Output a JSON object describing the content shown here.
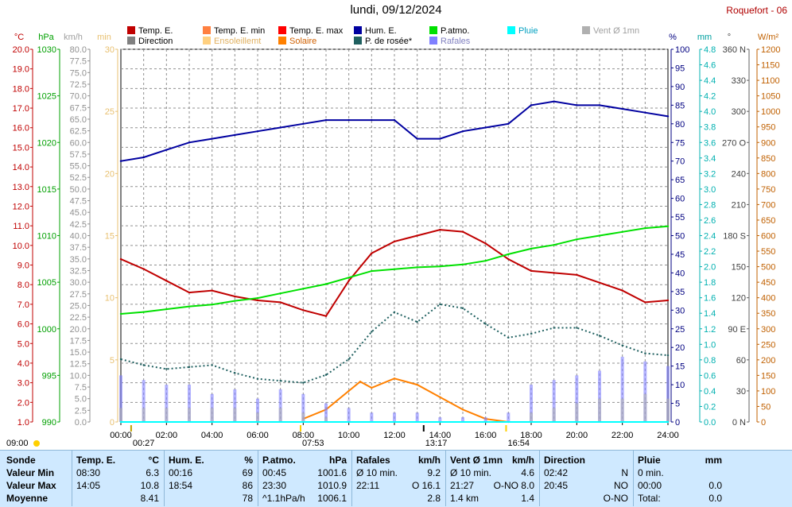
{
  "header": {
    "title": "lundi, 09/12/2024",
    "station": "Roquefort - 06"
  },
  "legend": [
    {
      "label": "Temp. E.",
      "color": "#c00000"
    },
    {
      "label": "Direction",
      "color": "#808080"
    },
    {
      "label": "Temp. E. min",
      "color": "#ff8040"
    },
    {
      "label": "Ensoleillemt",
      "color": "#ffd080"
    },
    {
      "label": "Temp. E. max",
      "color": "#ff0000"
    },
    {
      "label": "Solaire",
      "color": "#ff8000"
    },
    {
      "label": "Hum. E.",
      "color": "#0000a0"
    },
    {
      "label": "P. de rosée*",
      "color": "#206060"
    },
    {
      "label": "P.atmo.",
      "color": "#00e000"
    },
    {
      "label": "Rafales",
      "color": "#8080ff"
    },
    {
      "label": "Pluie",
      "color": "#00ffff"
    },
    {
      "label": "Vent Ø 1mn",
      "color": "#b0b0b0"
    }
  ],
  "axes": {
    "temp": {
      "unit": "°C",
      "min": 1.0,
      "max": 20.0,
      "step": 1.0,
      "color": "#c00000"
    },
    "press": {
      "unit": "hPa",
      "min": 990,
      "max": 1030,
      "step": 5,
      "color": "#00a000"
    },
    "wind": {
      "unit": "km/h",
      "min": 0.0,
      "max": 80.0,
      "step": 2.5,
      "color": "#909090"
    },
    "sun": {
      "unit": "min",
      "min": 0,
      "max": 30,
      "step": 5,
      "color": "#e8c070"
    },
    "hum": {
      "unit": "%",
      "min": 0,
      "max": 100,
      "step": 5,
      "color": "#000080"
    },
    "rain": {
      "unit": "mm",
      "min": 0.0,
      "max": 4.8,
      "step": 0.2,
      "color": "#00a0a0"
    },
    "dir": {
      "unit": "°",
      "ticks": [
        "0 N",
        "30",
        "60",
        "90 E",
        "120",
        "150",
        "180 S",
        "210",
        "240",
        "270 O",
        "300",
        "330",
        "360 N"
      ]
    },
    "solar": {
      "unit": "W/m²",
      "min": 0,
      "max": 1200,
      "step": 50,
      "color": "#c06000"
    },
    "x": {
      "ticks": [
        "00:00",
        "02:00",
        "04:00",
        "06:00",
        "08:00",
        "10:00",
        "12:00",
        "14:00",
        "16:00",
        "18:00",
        "20:00",
        "22:00",
        "24:00"
      ]
    }
  },
  "events": {
    "sunrise": "07:53",
    "sunset": "16:54",
    "noon": "13:17",
    "moonrise": "09:00",
    "moonset": "00:27"
  },
  "chart_data": {
    "type": "line",
    "x_unit": "hour",
    "series": [
      {
        "name": "Temp. E.",
        "unit": "°C",
        "x": [
          0,
          1,
          2,
          3,
          4,
          5,
          6,
          7,
          8,
          9,
          10,
          11,
          12,
          13,
          14,
          15,
          16,
          17,
          18,
          19,
          20,
          21,
          22,
          23,
          24
        ],
        "values": [
          9.3,
          8.8,
          8.2,
          7.6,
          7.7,
          7.4,
          7.2,
          7.1,
          6.7,
          6.4,
          8.2,
          9.6,
          10.2,
          10.5,
          10.8,
          10.7,
          10.1,
          9.3,
          8.7,
          8.6,
          8.5,
          8.1,
          7.7,
          7.1,
          7.2
        ]
      },
      {
        "name": "Hum. E.",
        "unit": "%",
        "x": [
          0,
          1,
          2,
          3,
          4,
          5,
          6,
          7,
          8,
          9,
          10,
          11,
          12,
          13,
          14,
          15,
          16,
          17,
          18,
          19,
          20,
          21,
          22,
          23,
          24
        ],
        "values": [
          70,
          71,
          73,
          75,
          76,
          77,
          78,
          79,
          80,
          81,
          81,
          81,
          81,
          76,
          76,
          78,
          79,
          80,
          85,
          86,
          85,
          85,
          84,
          83,
          82
        ]
      },
      {
        "name": "P.atmo.",
        "unit": "hPa",
        "x": [
          0,
          1,
          2,
          3,
          4,
          5,
          6,
          7,
          8,
          9,
          10,
          11,
          12,
          13,
          14,
          15,
          16,
          17,
          18,
          19,
          20,
          21,
          22,
          23,
          24
        ],
        "values": [
          1001.6,
          1001.8,
          1002.1,
          1002.4,
          1002.6,
          1003.0,
          1003.3,
          1003.8,
          1004.3,
          1004.8,
          1005.5,
          1006.2,
          1006.4,
          1006.6,
          1006.7,
          1006.9,
          1007.3,
          1008.0,
          1008.6,
          1009.0,
          1009.6,
          1010.0,
          1010.4,
          1010.8,
          1011.0
        ]
      },
      {
        "name": "P. de rosée*",
        "unit": "°C",
        "x": [
          0,
          1,
          2,
          3,
          4,
          5,
          6,
          7,
          8,
          9,
          10,
          11,
          12,
          13,
          14,
          15,
          16,
          17,
          18,
          19,
          20,
          21,
          22,
          23,
          24
        ],
        "values": [
          4.2,
          3.9,
          3.7,
          3.8,
          3.9,
          3.5,
          3.2,
          3.1,
          3.0,
          3.4,
          4.2,
          5.6,
          6.6,
          6.1,
          7.0,
          6.8,
          6.0,
          5.3,
          5.5,
          5.8,
          5.8,
          5.4,
          4.9,
          4.5,
          4.4
        ]
      },
      {
        "name": "Solaire",
        "unit": "W/m²",
        "x": [
          8,
          9,
          10,
          10.5,
          11,
          12,
          13,
          14,
          15,
          16,
          17
        ],
        "values": [
          10,
          40,
          100,
          130,
          110,
          140,
          120,
          80,
          40,
          10,
          0
        ]
      },
      {
        "name": "Rafales",
        "unit": "km/h",
        "x": [
          0,
          1,
          2,
          3,
          4,
          5,
          6,
          7,
          8,
          9,
          10,
          11,
          12,
          13,
          14,
          15,
          16,
          17,
          18,
          19,
          20,
          21,
          22,
          23,
          24
        ],
        "values": [
          10,
          9,
          8,
          8,
          6,
          7,
          5,
          7,
          6,
          4,
          3,
          2,
          2,
          2,
          1,
          1,
          1,
          2,
          8,
          9,
          10,
          11,
          14,
          13,
          12
        ]
      },
      {
        "name": "Vent Ø 1mn",
        "unit": "km/h",
        "x": [
          0,
          1,
          2,
          3,
          4,
          5,
          6,
          7,
          8,
          9,
          10,
          11,
          12,
          13,
          14,
          15,
          16,
          17,
          18,
          19,
          20,
          21,
          22,
          23,
          24
        ],
        "values": [
          3,
          3,
          3,
          3,
          3,
          3,
          2,
          3,
          2,
          1,
          0,
          0,
          0,
          0,
          0,
          0,
          0,
          0,
          2,
          3,
          4,
          5,
          5,
          6,
          5
        ]
      },
      {
        "name": "Pluie",
        "unit": "mm",
        "x": [
          0,
          24
        ],
        "values": [
          0.0,
          0.0
        ]
      }
    ]
  },
  "summary": {
    "columns": [
      {
        "title": "Sonde",
        "unit": "",
        "rows": [
          "Valeur Min",
          "Valeur Max",
          "Moyenne"
        ]
      },
      {
        "title": "Temp. E.",
        "unit": "°C",
        "rows": [
          [
            "08:30",
            "6.3"
          ],
          [
            "14:05",
            "10.8"
          ],
          [
            "",
            "8.41"
          ]
        ]
      },
      {
        "title": "Hum. E.",
        "unit": "%",
        "rows": [
          [
            "00:16",
            "69"
          ],
          [
            "18:54",
            "86"
          ],
          [
            "",
            "78"
          ]
        ]
      },
      {
        "title": "P.atmo.",
        "unit": "hPa",
        "rows": [
          [
            "00:45",
            "1001.6"
          ],
          [
            "23:30",
            "1010.9"
          ],
          [
            "^1.1hPa/h",
            "1006.1"
          ]
        ]
      },
      {
        "title": "Rafales",
        "unit": "km/h",
        "rows": [
          [
            "Ø 10 min.",
            "9.2"
          ],
          [
            "22:11",
            "O 16.1"
          ],
          [
            "",
            "2.8"
          ]
        ]
      },
      {
        "title": "Vent Ø 1mn",
        "unit": "km/h",
        "rows": [
          [
            "Ø 10 min.",
            "4.6"
          ],
          [
            "21:27",
            "O-NO 8.0"
          ],
          [
            "1.4 km",
            "1.4"
          ]
        ]
      },
      {
        "title": "Direction",
        "unit": "",
        "rows": [
          [
            "02:42",
            "N"
          ],
          [
            "20:45",
            "NO"
          ],
          [
            "",
            "O-NO"
          ]
        ]
      },
      {
        "title": "Pluie",
        "unit": "mm",
        "rows": [
          [
            "0 min.",
            ""
          ],
          [
            "00:00",
            "0.0"
          ],
          [
            "Total:",
            "0.0"
          ]
        ]
      }
    ]
  }
}
